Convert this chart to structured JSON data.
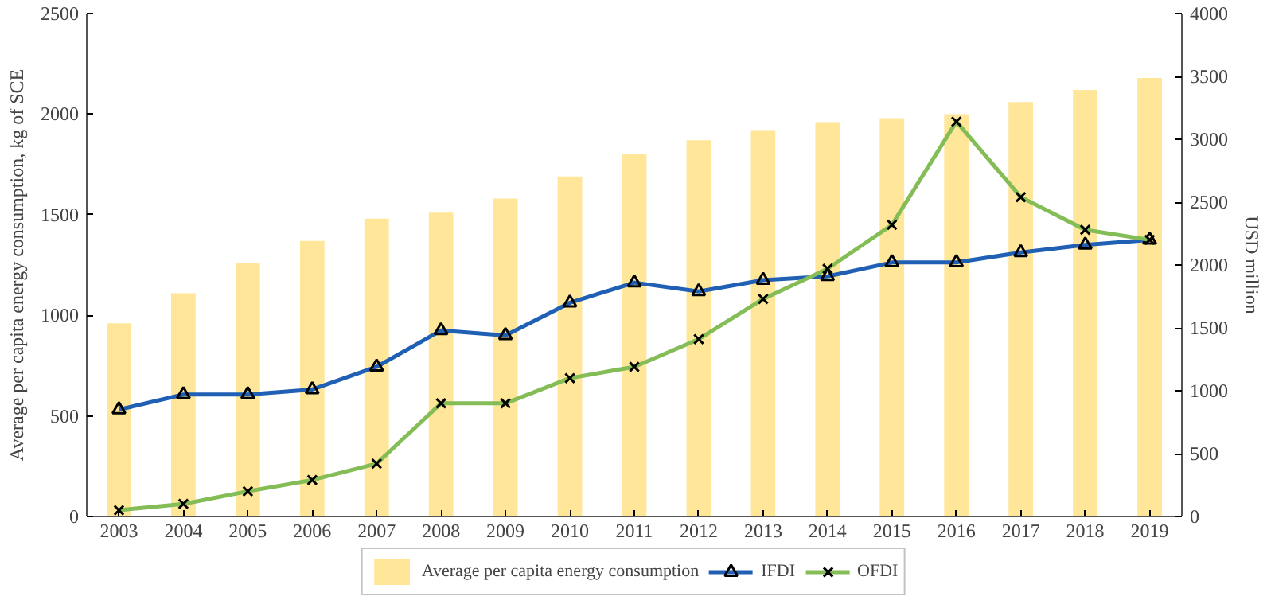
{
  "chart_data": {
    "type": "bar",
    "categories": [
      "2003",
      "2004",
      "2005",
      "2006",
      "2007",
      "2008",
      "2009",
      "2010",
      "2011",
      "2012",
      "2013",
      "2014",
      "2015",
      "2016",
      "2017",
      "2018",
      "2019"
    ],
    "ylabel": "Average per capita energy consumption, kg of SCE",
    "y2label": "USD million",
    "ylim": [
      0,
      2500
    ],
    "yticks": [
      0,
      500,
      1000,
      1500,
      2000,
      2500
    ],
    "y2lim": [
      0,
      4000
    ],
    "y2ticks": [
      0,
      500,
      1000,
      1500,
      2000,
      2500,
      3000,
      3500,
      4000
    ],
    "grid": false,
    "legend": "bottom",
    "series": [
      {
        "name": "Average per capita energy consumption",
        "color": "#ffe699",
        "values": [
          960,
          1110,
          1260,
          1370,
          1480,
          1510,
          1580,
          1690,
          1800,
          1870,
          1920,
          1960,
          1980,
          2000,
          2060,
          2120,
          2180
        ]
      },
      {
        "name": "IFDI",
        "type": "line",
        "axis": "y2",
        "color": "#1f5fb4",
        "marker": "triangle",
        "values": [
          850,
          970,
          970,
          1010,
          1190,
          1480,
          1440,
          1700,
          1860,
          1790,
          1880,
          1910,
          2020,
          2020,
          2100,
          2160,
          2200
        ]
      },
      {
        "name": "OFDI",
        "type": "line",
        "axis": "y2",
        "color": "#84bc55",
        "marker": "cross",
        "values": [
          50,
          100,
          200,
          290,
          420,
          900,
          900,
          1100,
          1190,
          1410,
          1730,
          1970,
          2320,
          3140,
          2540,
          2280,
          2200
        ]
      }
    ]
  }
}
